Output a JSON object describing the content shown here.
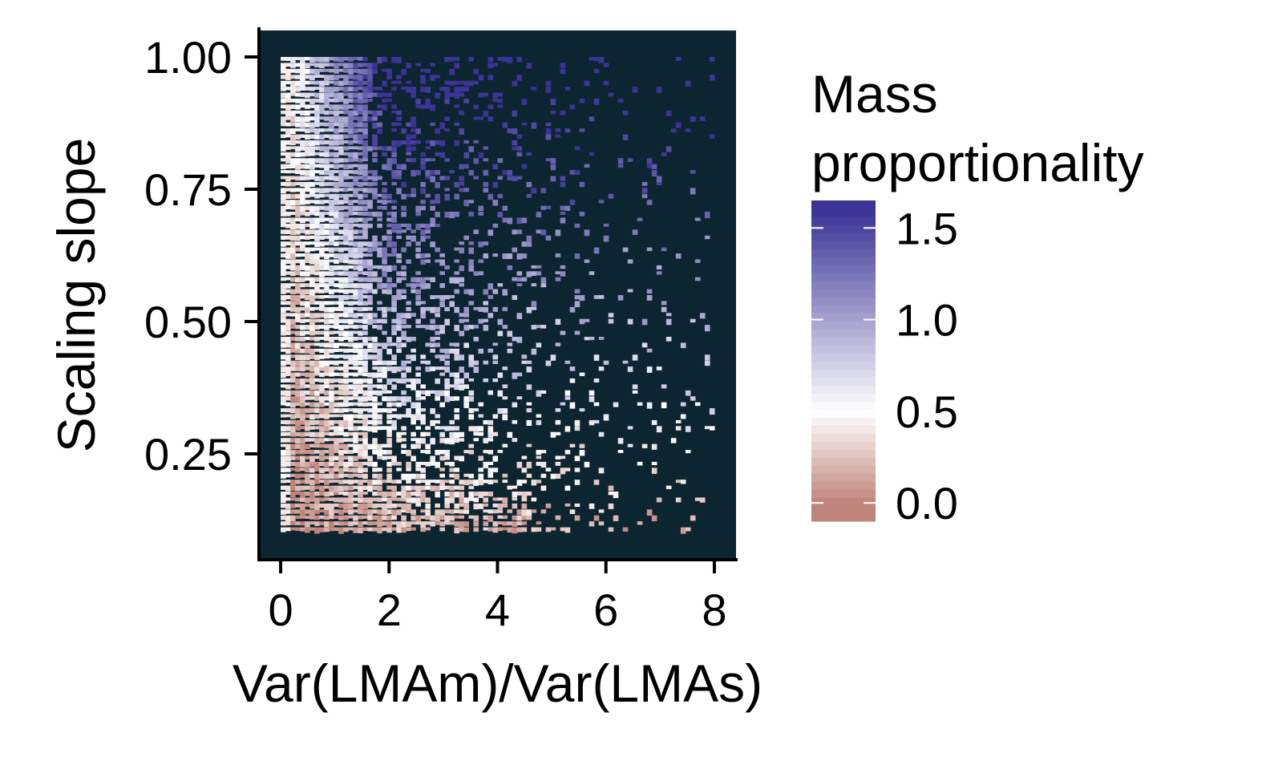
{
  "chart_data": {
    "type": "heatmap",
    "title": "",
    "xlabel": "Var(LMAm)/Var(LMAs)",
    "ylabel": "Scaling slope",
    "xlim": [
      -0.4,
      8.4
    ],
    "ylim": [
      0.05,
      1.05
    ],
    "x_data_range": [
      0,
      8
    ],
    "y_data_range": [
      0.1,
      1.0
    ],
    "x_ticks": [
      {
        "value": 0,
        "label": "0"
      },
      {
        "value": 2,
        "label": "2"
      },
      {
        "value": 4,
        "label": "4"
      },
      {
        "value": 6,
        "label": "6"
      },
      {
        "value": 8,
        "label": "8"
      }
    ],
    "y_ticks": [
      {
        "value": 0.25,
        "label": "0.25"
      },
      {
        "value": 0.5,
        "label": "0.50"
      },
      {
        "value": 0.75,
        "label": "0.75"
      },
      {
        "value": 1.0,
        "label": "1.00"
      }
    ],
    "panel_background": "#0d2530",
    "colorbar": {
      "title_line1": "Mass",
      "title_line2": "proportionality",
      "range": [
        -0.1,
        1.65
      ],
      "ticks": [
        {
          "value": 0.0,
          "label": "0.0"
        },
        {
          "value": 0.5,
          "label": "0.5"
        },
        {
          "value": 1.0,
          "label": "1.0"
        },
        {
          "value": 1.5,
          "label": "1.5"
        }
      ],
      "color_low": "#c0857a",
      "color_mid": "#ffffff",
      "color_high": "#3b3396"
    },
    "grid": false,
    "legend_position": "right"
  }
}
